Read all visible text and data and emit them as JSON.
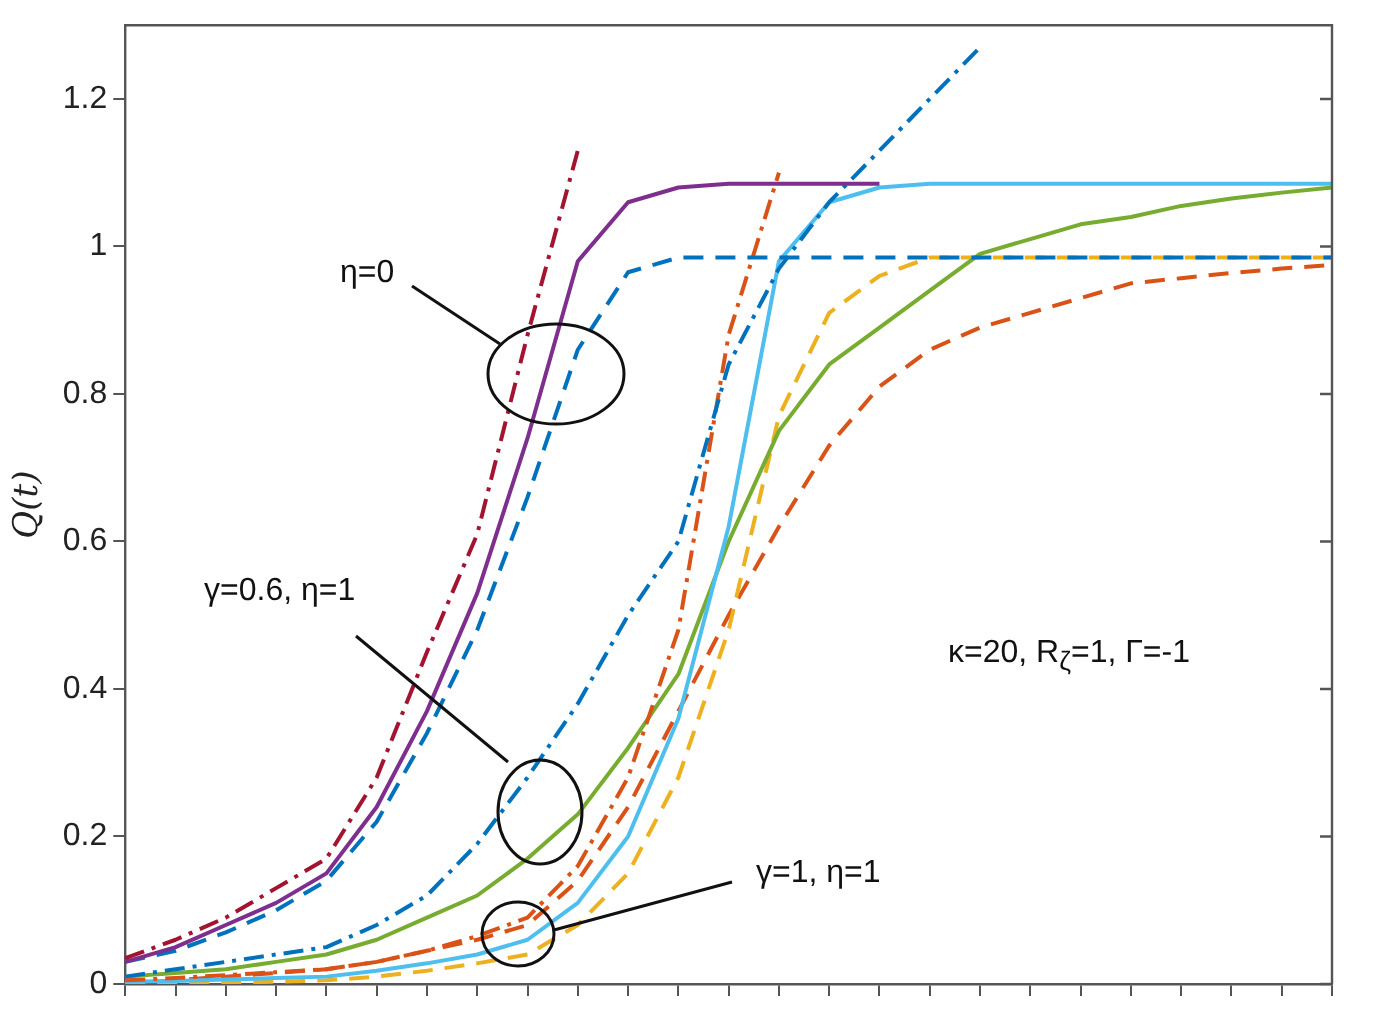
{
  "chart_data": {
    "type": "line",
    "ylabel": "Q(t)",
    "grid": false,
    "legend": false,
    "marker": "none",
    "tick_labels": "y",
    "categories": [
      null,
      null,
      null,
      null,
      null,
      null,
      null,
      null,
      null,
      null,
      null,
      null,
      null,
      null,
      null,
      null,
      null,
      null,
      null,
      null,
      null,
      null,
      null,
      null,
      null
    ],
    "ylim": [
      0,
      1.3
    ],
    "yticks": [
      0,
      0.2,
      0.4,
      0.6,
      0.8,
      1,
      1.2
    ],
    "annotations": [
      "η=0",
      "γ=0.6, η=1",
      "γ=1, η=1",
      "κ=20, R$_{ζ}$=1, Γ=-1"
    ],
    "series": [
      {
        "color": "#a2142f",
        "line_style": "dashdot",
        "values": [
          0.035,
          0.06,
          0.09,
          0.13,
          0.17,
          0.28,
          0.45,
          0.61,
          0.88,
          1.13,
          null,
          null,
          null,
          null,
          null,
          null,
          null,
          null,
          null,
          null,
          null,
          null,
          null,
          null,
          null
        ]
      },
      {
        "color": "#7e2f8e",
        "line_style": "solid",
        "values": [
          0.03,
          0.05,
          0.08,
          0.11,
          0.15,
          0.24,
          0.37,
          0.53,
          0.74,
          0.98,
          1.06,
          1.08,
          1.085,
          1.085,
          1.085,
          1.085,
          null,
          null,
          null,
          null,
          null,
          null,
          null,
          null,
          null
        ]
      },
      {
        "color": "#0072bd",
        "line_style": "dashed",
        "values": [
          0.03,
          0.045,
          0.07,
          0.1,
          0.14,
          0.22,
          0.34,
          0.48,
          0.66,
          0.86,
          0.965,
          0.985,
          0.985,
          0.985,
          0.985,
          0.985,
          0.985,
          0.985,
          0.985,
          0.985,
          0.985,
          0.985,
          0.985,
          0.985,
          0.985
        ]
      },
      {
        "color": "#0072bd",
        "line_style": "dashdot",
        "values": [
          0.01,
          0.02,
          0.03,
          0.04,
          0.05,
          0.08,
          0.12,
          0.19,
          0.28,
          0.38,
          0.5,
          0.6,
          0.84,
          0.97,
          1.06,
          1.13,
          1.2,
          1.27,
          null,
          null,
          null,
          null,
          null,
          null,
          null
        ]
      },
      {
        "color": "#d95319",
        "line_style": "dashdot",
        "values": [
          0.005,
          0.008,
          0.012,
          0.016,
          0.02,
          0.03,
          0.045,
          0.065,
          0.09,
          0.16,
          0.28,
          0.48,
          0.88,
          1.1,
          null,
          null,
          null,
          null,
          null,
          null,
          null,
          null,
          null,
          null,
          null
        ]
      },
      {
        "color": "#4dbeee",
        "line_style": "solid",
        "values": [
          0.003,
          0.004,
          0.006,
          0.008,
          0.01,
          0.018,
          0.028,
          0.04,
          0.06,
          0.11,
          0.2,
          0.36,
          0.62,
          0.98,
          1.06,
          1.08,
          1.085,
          1.085,
          1.085,
          1.085,
          1.085,
          1.085,
          1.085,
          1.085,
          1.085
        ]
      },
      {
        "color": "#77ac30",
        "line_style": "solid",
        "values": [
          0.01,
          0.015,
          0.02,
          0.03,
          0.04,
          0.06,
          0.09,
          0.12,
          0.17,
          0.23,
          0.32,
          0.42,
          0.6,
          0.75,
          0.84,
          0.89,
          0.94,
          0.99,
          1.01,
          1.03,
          1.04,
          1.055,
          1.065,
          1.073,
          1.08
        ]
      },
      {
        "color": "#edb120",
        "line_style": "dashed",
        "values": [
          0,
          0.001,
          0.002,
          0.003,
          0.005,
          0.01,
          0.018,
          0.028,
          0.04,
          0.08,
          0.15,
          0.28,
          0.48,
          0.77,
          0.91,
          0.96,
          0.985,
          0.985,
          0.985,
          0.985,
          0.985,
          0.985,
          0.985,
          0.985,
          0.985
        ]
      },
      {
        "color": "#d95319",
        "line_style": "dashed",
        "values": [
          0,
          0.005,
          0.01,
          0.015,
          0.02,
          0.03,
          0.045,
          0.06,
          0.08,
          0.14,
          0.24,
          0.37,
          0.5,
          0.62,
          0.73,
          0.81,
          0.86,
          0.89,
          0.91,
          0.93,
          0.95,
          0.957,
          0.964,
          0.97,
          0.975
        ]
      }
    ]
  }
}
